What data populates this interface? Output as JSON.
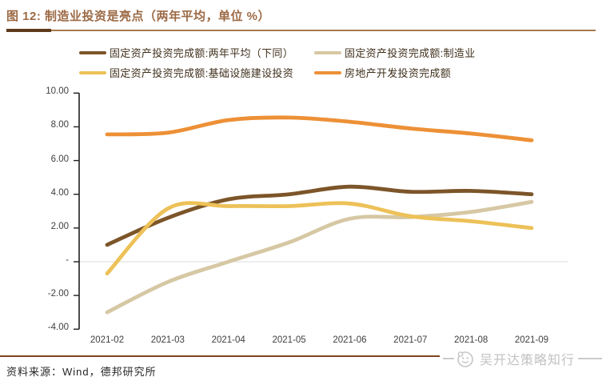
{
  "header": {
    "title": "图 12: 制造业投资是亮点（两年平均，单位 %）"
  },
  "chart_data": {
    "type": "line",
    "title": "制造业投资是亮点（两年平均）",
    "unit": "%",
    "categories": [
      "2021-02",
      "2021-03",
      "2021-04",
      "2021-05",
      "2021-06",
      "2021-07",
      "2021-08",
      "2021-09"
    ],
    "series": [
      {
        "name": "固定资产投资完成额:两年平均（下同）",
        "color": "#7C5529",
        "values": [
          1.0,
          2.6,
          3.7,
          4.0,
          4.45,
          4.15,
          4.2,
          4.0
        ]
      },
      {
        "name": "固定资产投资完成额:制造业",
        "color": "#D6C8A4",
        "values": [
          -3.0,
          -1.2,
          0.0,
          1.15,
          2.55,
          2.65,
          2.95,
          3.55
        ]
      },
      {
        "name": "固定资产投资完成额:基础设施建设投资",
        "color": "#EDC158",
        "values": [
          -0.7,
          3.15,
          3.3,
          3.3,
          3.45,
          2.7,
          2.4,
          2.0
        ]
      },
      {
        "name": "房地产开发投资完成额",
        "color": "#ED9036",
        "values": [
          7.55,
          7.65,
          8.4,
          8.55,
          8.3,
          7.9,
          7.6,
          7.2
        ]
      }
    ],
    "ylim": [
      -4,
      10
    ],
    "ytick_step": 2,
    "ytick_values": [
      10,
      8,
      6,
      4,
      2,
      0,
      -2,
      -4
    ],
    "ytick_labels": [
      "10.00",
      "8.00",
      "6.00",
      "4.00",
      "2.00",
      "-",
      "-2.00",
      "-4.00"
    ],
    "grid": "horizontal-zero-line-only",
    "legend_position": "top",
    "legend_rows": [
      [
        0,
        1
      ],
      [
        2,
        3
      ]
    ]
  },
  "footer": {
    "source": "资料来源：Wind，德邦研究所",
    "watermark": "吴开达策略知行"
  },
  "theme": {
    "title_color": "#9C6A45",
    "title_rule_color": "#A57A4E",
    "title_rule_accent": "#5E3A1C",
    "footer_rule_color": "#7E441F",
    "axis_color": "#1F1F1F",
    "grid_color": "#DCDCDC",
    "tick_label_color": "#3F3F3F",
    "legend_text_color": "#40301C",
    "source_text_color": "#262626",
    "watermark_color": "#C2C2C2"
  }
}
